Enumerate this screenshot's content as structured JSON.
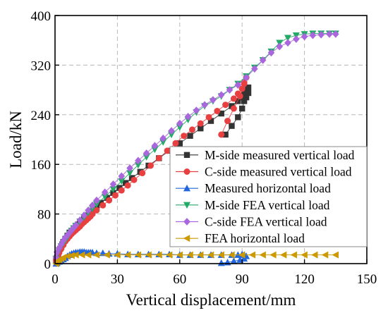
{
  "chart_data": {
    "type": "scatter",
    "xlabel": "Vertical displacement/mm",
    "ylabel": "Load/kN",
    "xlim": [
      0,
      150
    ],
    "ylim": [
      0,
      400
    ],
    "xticks": [
      0,
      30,
      60,
      90,
      120,
      150
    ],
    "yticks": [
      0,
      80,
      160,
      240,
      320,
      400
    ],
    "grid": true,
    "legend_position": "lower-right",
    "series": [
      {
        "name": "M-side measured vertical load",
        "color": "#333333",
        "marker": "square",
        "line": true,
        "x": [
          0.5,
          1,
          1.5,
          2,
          2.5,
          3,
          3.5,
          4,
          5,
          6,
          7,
          8,
          9,
          10,
          11,
          12,
          13,
          14,
          15,
          16,
          17,
          18,
          20,
          22,
          25,
          28,
          31,
          34,
          37,
          41,
          45,
          50,
          55,
          60,
          65,
          70,
          75,
          80,
          85,
          88,
          90,
          91,
          92,
          93,
          93,
          92,
          91,
          90,
          88,
          85,
          82
        ],
        "y": [
          5,
          10,
          15,
          20,
          24,
          28,
          31,
          35,
          40,
          45,
          50,
          52,
          56,
          60,
          63,
          66,
          69,
          72,
          75,
          78,
          81,
          84,
          91,
          98,
          106,
          114,
          122,
          130,
          138,
          148,
          158,
          170,
          182,
          194,
          206,
          218,
          230,
          242,
          254,
          262,
          268,
          274,
          280,
          284,
          275,
          268,
          262,
          250,
          236,
          222,
          208
        ]
      },
      {
        "name": "C-side measured vertical load",
        "color": "#e84040",
        "marker": "circle",
        "line": true,
        "x": [
          0.5,
          1,
          1.5,
          2,
          3,
          4,
          5,
          6,
          7,
          8,
          9,
          10,
          11,
          12,
          13,
          14,
          15,
          16,
          17,
          18,
          20,
          23,
          26,
          29,
          32,
          35,
          38,
          42,
          46,
          50,
          54,
          58,
          62,
          66,
          70,
          74,
          78,
          82,
          86,
          88,
          90,
          91,
          92,
          91,
          89,
          86,
          83,
          80
        ],
        "y": [
          5,
          10,
          14,
          18,
          24,
          30,
          36,
          40,
          44,
          48,
          51,
          54,
          57,
          60,
          64,
          67,
          70,
          73,
          76,
          80,
          86,
          94,
          102,
          110,
          118,
          126,
          135,
          146,
          158,
          170,
          182,
          194,
          206,
          216,
          226,
          236,
          246,
          256,
          266,
          274,
          282,
          292,
          300,
          290,
          270,
          250,
          230,
          208
        ]
      },
      {
        "name": "Measured horizontal load",
        "color": "#2266dd",
        "marker": "triangle-up",
        "line": true,
        "x": [
          0.5,
          1,
          2,
          3,
          4,
          5,
          6,
          7,
          8,
          9,
          10,
          11,
          12,
          13,
          14,
          15,
          16,
          17,
          18,
          20,
          23,
          26,
          30,
          35,
          40,
          45,
          50,
          55,
          60,
          65,
          70,
          75,
          80,
          85,
          88,
          90,
          91,
          92,
          91,
          89,
          86,
          83,
          80
        ],
        "y": [
          0,
          1,
          3,
          5,
          7,
          9,
          12,
          14,
          16,
          17,
          18,
          18,
          19,
          19,
          19,
          18,
          18,
          18,
          18,
          17,
          17,
          16,
          16,
          15,
          15,
          15,
          15,
          15,
          14,
          14,
          14,
          14,
          14,
          14,
          14,
          15,
          14,
          12,
          8,
          6,
          4,
          2,
          1
        ]
      },
      {
        "name": "M-side FEA vertical load",
        "color": "#22aa66",
        "marker": "triangle-down",
        "line": true,
        "x": [
          0.5,
          1,
          2,
          3,
          4,
          5,
          6,
          7,
          8,
          9,
          10,
          12,
          14,
          16,
          18,
          20,
          24,
          28,
          32,
          36,
          40,
          44,
          48,
          52,
          56,
          60,
          64,
          68,
          72,
          76,
          80,
          84,
          88,
          92,
          96,
          100,
          104,
          108,
          112,
          116,
          120,
          124,
          128,
          132,
          135
        ],
        "y": [
          8,
          15,
          22,
          28,
          33,
          38,
          43,
          48,
          53,
          57,
          61,
          68,
          75,
          82,
          89,
          96,
          108,
          120,
          133,
          146,
          159,
          172,
          184,
          196,
          208,
          220,
          232,
          244,
          254,
          262,
          270,
          280,
          290,
          302,
          316,
          328,
          342,
          356,
          364,
          368,
          370,
          371,
          371,
          371,
          371
        ]
      },
      {
        "name": "C-side FEA vertical load",
        "color": "#aa66dd",
        "marker": "diamond",
        "line": true,
        "x": [
          0.5,
          1,
          2,
          3,
          4,
          5,
          6,
          7,
          8,
          9,
          10,
          12,
          14,
          16,
          18,
          20,
          24,
          28,
          32,
          36,
          40,
          44,
          48,
          52,
          56,
          60,
          64,
          68,
          72,
          76,
          80,
          84,
          88,
          92,
          96,
          100,
          104,
          108,
          112,
          116,
          120,
          124,
          128,
          132,
          135
        ],
        "y": [
          10,
          18,
          25,
          31,
          37,
          42,
          46,
          50,
          54,
          58,
          62,
          70,
          78,
          86,
          94,
          102,
          115,
          128,
          141,
          154,
          166,
          178,
          190,
          202,
          214,
          226,
          237,
          247,
          256,
          264,
          272,
          280,
          288,
          300,
          314,
          328,
          340,
          350,
          356,
          362,
          366,
          368,
          369,
          370,
          370
        ]
      },
      {
        "name": "FEA horizontal load",
        "color": "#cc9900",
        "marker": "triangle-left",
        "line": true,
        "x": [
          0.5,
          1,
          2,
          3,
          4,
          6,
          8,
          10,
          13,
          16,
          20,
          25,
          30,
          35,
          40,
          45,
          50,
          55,
          60,
          65,
          70,
          75,
          80,
          85,
          90,
          95,
          100,
          105,
          110,
          115,
          120,
          125,
          130,
          135
        ],
        "y": [
          0,
          3,
          6,
          8,
          10,
          12,
          13,
          14,
          14,
          14,
          14,
          14,
          14,
          14,
          14,
          14,
          14,
          14,
          14,
          14,
          14,
          14,
          14,
          14,
          14,
          14,
          14,
          14,
          14,
          14,
          14,
          14,
          14,
          14
        ]
      }
    ]
  }
}
